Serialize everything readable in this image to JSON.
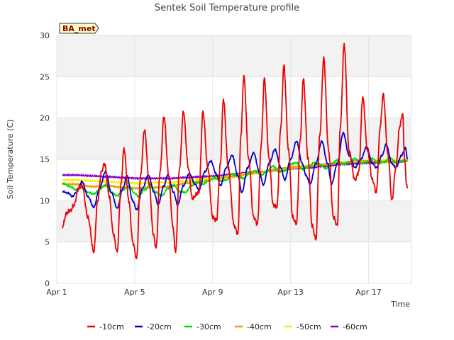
{
  "chart_data": {
    "type": "line",
    "title": "Sentek Soil Temperature profile",
    "xlabel": "Time",
    "ylabel": "Soil Temperature (C)",
    "site_tag": "BA_met",
    "xlim": [
      0,
      18.2
    ],
    "ylim": [
      0,
      30
    ],
    "yticks": [
      0,
      5,
      10,
      15,
      20,
      25,
      30
    ],
    "xticks": [
      {
        "pos": 0,
        "label": "Apr 1"
      },
      {
        "pos": 4,
        "label": "Apr 5"
      },
      {
        "pos": 8,
        "label": "Apr 9"
      },
      {
        "pos": 12,
        "label": "Apr 13"
      },
      {
        "pos": 16,
        "label": "Apr 17"
      }
    ],
    "grid": true,
    "legend_position": "bottom",
    "series": [
      {
        "name": "-10cm",
        "color": "#ee0000",
        "kind": "diurnal",
        "points": [
          [
            0.3,
            6.9
          ],
          [
            0.5,
            8.5
          ],
          [
            0.7,
            8.8
          ],
          [
            0.9,
            9.5
          ],
          [
            1.1,
            11.5
          ],
          [
            1.3,
            11.8
          ],
          [
            1.6,
            8.0
          ],
          [
            1.9,
            3.8
          ],
          [
            2.1,
            10.0
          ],
          [
            2.3,
            13.5
          ],
          [
            2.45,
            14.5
          ],
          [
            2.7,
            10.5
          ],
          [
            2.9,
            6.0
          ],
          [
            3.1,
            3.8
          ],
          [
            3.3,
            12.0
          ],
          [
            3.45,
            16.3
          ],
          [
            3.7,
            10.0
          ],
          [
            3.9,
            5.0
          ],
          [
            4.1,
            3.0
          ],
          [
            4.3,
            13.0
          ],
          [
            4.5,
            18.6
          ],
          [
            4.75,
            12.0
          ],
          [
            4.95,
            6.0
          ],
          [
            5.1,
            4.3
          ],
          [
            5.3,
            13.5
          ],
          [
            5.5,
            20.2
          ],
          [
            5.75,
            13.0
          ],
          [
            5.95,
            7.0
          ],
          [
            6.1,
            3.8
          ],
          [
            6.3,
            14.0
          ],
          [
            6.5,
            20.8
          ],
          [
            6.75,
            14.0
          ],
          [
            6.95,
            10.3
          ],
          [
            7.3,
            11.0
          ],
          [
            7.5,
            20.8
          ],
          [
            7.75,
            14.0
          ],
          [
            8.0,
            8.0
          ],
          [
            8.2,
            7.6
          ],
          [
            8.4,
            14.5
          ],
          [
            8.55,
            22.3
          ],
          [
            8.8,
            14.0
          ],
          [
            9.1,
            7.0
          ],
          [
            9.3,
            6.0
          ],
          [
            9.45,
            18.0
          ],
          [
            9.6,
            25.1
          ],
          [
            9.85,
            15.0
          ],
          [
            10.1,
            8.0
          ],
          [
            10.3,
            7.2
          ],
          [
            10.5,
            17.0
          ],
          [
            10.65,
            24.8
          ],
          [
            10.9,
            15.0
          ],
          [
            11.1,
            9.5
          ],
          [
            11.3,
            9.2
          ],
          [
            11.5,
            19.0
          ],
          [
            11.65,
            26.4
          ],
          [
            11.9,
            16.0
          ],
          [
            12.1,
            8.0
          ],
          [
            12.3,
            7.2
          ],
          [
            12.5,
            17.5
          ],
          [
            12.65,
            24.8
          ],
          [
            12.9,
            15.0
          ],
          [
            13.1,
            7.0
          ],
          [
            13.3,
            5.3
          ],
          [
            13.5,
            18.0
          ],
          [
            13.7,
            27.2
          ],
          [
            13.95,
            16.0
          ],
          [
            14.2,
            8.0
          ],
          [
            14.4,
            7.0
          ],
          [
            14.55,
            19.0
          ],
          [
            14.75,
            28.9
          ],
          [
            15.0,
            16.0
          ],
          [
            15.3,
            12.5
          ],
          [
            15.5,
            13.5
          ],
          [
            15.7,
            22.5
          ],
          [
            15.95,
            16.0
          ],
          [
            16.2,
            12.5
          ],
          [
            16.4,
            11.0
          ],
          [
            16.6,
            19.0
          ],
          [
            16.75,
            22.9
          ],
          [
            17.0,
            15.5
          ],
          [
            17.2,
            10.0
          ],
          [
            17.4,
            14.0
          ],
          [
            17.6,
            19.0
          ],
          [
            17.75,
            20.6
          ],
          [
            17.85,
            15.0
          ],
          [
            17.95,
            12.0
          ],
          [
            18.0,
            11.5
          ]
        ]
      },
      {
        "name": "-20cm",
        "color": "#0000cc",
        "kind": "smooth",
        "points": [
          [
            0.3,
            11.1
          ],
          [
            0.6,
            10.9
          ],
          [
            0.8,
            10.5
          ],
          [
            1.0,
            11.0
          ],
          [
            1.3,
            12.3
          ],
          [
            1.6,
            10.5
          ],
          [
            1.9,
            9.2
          ],
          [
            2.2,
            11.5
          ],
          [
            2.5,
            13.5
          ],
          [
            2.8,
            11.0
          ],
          [
            3.1,
            9.1
          ],
          [
            3.4,
            11.5
          ],
          [
            3.6,
            13.0
          ],
          [
            3.9,
            10.0
          ],
          [
            4.1,
            8.9
          ],
          [
            4.4,
            11.5
          ],
          [
            4.7,
            13.1
          ],
          [
            5.0,
            11.0
          ],
          [
            5.2,
            9.5
          ],
          [
            5.5,
            11.8
          ],
          [
            5.7,
            13.1
          ],
          [
            6.0,
            11.0
          ],
          [
            6.2,
            9.5
          ],
          [
            6.5,
            11.8
          ],
          [
            6.8,
            13.3
          ],
          [
            7.1,
            12.0
          ],
          [
            7.3,
            11.3
          ],
          [
            7.6,
            13.5
          ],
          [
            7.9,
            14.8
          ],
          [
            8.2,
            13.2
          ],
          [
            8.4,
            11.8
          ],
          [
            8.7,
            14.0
          ],
          [
            9.0,
            15.5
          ],
          [
            9.3,
            13.0
          ],
          [
            9.5,
            11.0
          ],
          [
            9.8,
            14.0
          ],
          [
            10.1,
            15.8
          ],
          [
            10.4,
            13.5
          ],
          [
            10.6,
            11.9
          ],
          [
            10.9,
            14.5
          ],
          [
            11.2,
            16.2
          ],
          [
            11.5,
            14.0
          ],
          [
            11.7,
            12.5
          ],
          [
            12.0,
            15.0
          ],
          [
            12.3,
            17.2
          ],
          [
            12.6,
            14.5
          ],
          [
            12.8,
            13.0
          ],
          [
            13.0,
            12.0
          ],
          [
            13.3,
            14.5
          ],
          [
            13.6,
            17.2
          ],
          [
            13.9,
            14.5
          ],
          [
            14.1,
            12.0
          ],
          [
            14.4,
            14.5
          ],
          [
            14.7,
            18.2
          ],
          [
            15.0,
            15.5
          ],
          [
            15.3,
            14.0
          ],
          [
            15.6,
            15.0
          ],
          [
            15.9,
            16.5
          ],
          [
            16.2,
            14.5
          ],
          [
            16.4,
            14.0
          ],
          [
            16.7,
            15.5
          ],
          [
            16.9,
            16.8
          ],
          [
            17.2,
            14.5
          ],
          [
            17.4,
            14.0
          ],
          [
            17.7,
            15.5
          ],
          [
            17.9,
            16.4
          ],
          [
            18.0,
            15.0
          ]
        ]
      },
      {
        "name": "-30cm",
        "color": "#00dd00",
        "kind": "smooth",
        "points": [
          [
            0.3,
            12.1
          ],
          [
            0.7,
            11.7
          ],
          [
            1.0,
            11.3
          ],
          [
            1.3,
            11.6
          ],
          [
            1.6,
            11.0
          ],
          [
            1.9,
            10.8
          ],
          [
            2.2,
            11.4
          ],
          [
            2.5,
            11.9
          ],
          [
            2.8,
            11.0
          ],
          [
            3.1,
            10.6
          ],
          [
            3.4,
            11.3
          ],
          [
            3.7,
            11.8
          ],
          [
            4.0,
            10.9
          ],
          [
            4.2,
            10.5
          ],
          [
            4.5,
            11.3
          ],
          [
            4.8,
            11.9
          ],
          [
            5.1,
            11.0
          ],
          [
            5.4,
            10.6
          ],
          [
            5.7,
            11.5
          ],
          [
            6.0,
            11.9
          ],
          [
            6.3,
            11.1
          ],
          [
            6.6,
            11.0
          ],
          [
            6.9,
            11.8
          ],
          [
            7.2,
            12.2
          ],
          [
            7.5,
            12.0
          ],
          [
            7.8,
            12.4
          ],
          [
            8.1,
            12.8
          ],
          [
            8.4,
            12.4
          ],
          [
            8.7,
            12.5
          ],
          [
            9.0,
            13.2
          ],
          [
            9.3,
            13.0
          ],
          [
            9.6,
            12.7
          ],
          [
            9.9,
            13.4
          ],
          [
            10.2,
            13.6
          ],
          [
            10.5,
            13.1
          ],
          [
            10.8,
            13.6
          ],
          [
            11.1,
            14.2
          ],
          [
            11.4,
            13.5
          ],
          [
            11.7,
            13.6
          ],
          [
            12.0,
            14.4
          ],
          [
            12.3,
            14.6
          ],
          [
            12.6,
            13.8
          ],
          [
            12.9,
            14.0
          ],
          [
            13.2,
            14.6
          ],
          [
            13.5,
            14.4
          ],
          [
            13.8,
            13.9
          ],
          [
            14.1,
            14.5
          ],
          [
            14.4,
            14.9
          ],
          [
            14.7,
            14.4
          ],
          [
            15.0,
            14.7
          ],
          [
            15.3,
            15.1
          ],
          [
            15.6,
            14.5
          ],
          [
            15.9,
            14.7
          ],
          [
            16.2,
            15.1
          ],
          [
            16.5,
            14.5
          ],
          [
            16.8,
            14.7
          ],
          [
            17.1,
            15.2
          ],
          [
            17.4,
            14.6
          ],
          [
            17.7,
            14.8
          ],
          [
            18.0,
            14.9
          ]
        ]
      },
      {
        "name": "-40cm",
        "color": "#e8a000",
        "kind": "smooth",
        "points": [
          [
            0.3,
            12.0
          ],
          [
            1.0,
            12.0
          ],
          [
            1.8,
            11.7
          ],
          [
            2.6,
            11.8
          ],
          [
            3.4,
            11.6
          ],
          [
            4.2,
            11.5
          ],
          [
            5.0,
            11.6
          ],
          [
            5.8,
            11.7
          ],
          [
            6.6,
            12.1
          ],
          [
            7.4,
            12.3
          ],
          [
            8.2,
            12.7
          ],
          [
            9.0,
            12.9
          ],
          [
            9.8,
            13.2
          ],
          [
            10.6,
            13.5
          ],
          [
            11.4,
            13.9
          ],
          [
            12.2,
            14.1
          ],
          [
            13.0,
            14.2
          ],
          [
            13.8,
            14.4
          ],
          [
            14.6,
            14.6
          ],
          [
            15.4,
            14.8
          ],
          [
            16.2,
            14.8
          ],
          [
            17.0,
            14.7
          ],
          [
            17.6,
            14.8
          ],
          [
            18.0,
            14.8
          ]
        ]
      },
      {
        "name": "-50cm",
        "color": "#ffee00",
        "kind": "smooth",
        "points": [
          [
            0.3,
            12.5
          ],
          [
            1.0,
            12.5
          ],
          [
            1.8,
            12.4
          ],
          [
            2.6,
            12.3
          ],
          [
            3.4,
            12.2
          ],
          [
            4.2,
            12.1
          ],
          [
            5.0,
            12.2
          ],
          [
            5.8,
            12.2
          ],
          [
            6.6,
            12.4
          ],
          [
            7.4,
            12.6
          ],
          [
            8.2,
            12.8
          ],
          [
            9.0,
            13.0
          ],
          [
            9.8,
            13.3
          ],
          [
            10.6,
            13.5
          ],
          [
            11.4,
            13.8
          ],
          [
            12.2,
            14.0
          ],
          [
            13.0,
            14.2
          ],
          [
            13.8,
            14.4
          ],
          [
            14.6,
            14.6
          ],
          [
            15.4,
            14.8
          ],
          [
            16.2,
            14.8
          ],
          [
            17.0,
            14.9
          ],
          [
            17.6,
            14.9
          ],
          [
            18.0,
            14.9
          ]
        ]
      },
      {
        "name": "-60cm",
        "color": "#8800cc",
        "kind": "smooth",
        "points": [
          [
            0.3,
            13.1
          ],
          [
            1.0,
            13.1
          ],
          [
            1.8,
            13.0
          ],
          [
            2.6,
            12.9
          ],
          [
            3.4,
            12.8
          ],
          [
            4.2,
            12.7
          ],
          [
            5.0,
            12.7
          ],
          [
            5.8,
            12.7
          ],
          [
            6.6,
            12.8
          ],
          [
            7.4,
            12.9
          ],
          [
            8.2,
            13.0
          ],
          [
            9.0,
            13.2
          ],
          [
            9.8,
            13.4
          ],
          [
            10.6,
            13.5
          ],
          [
            11.4,
            13.7
          ],
          [
            12.2,
            13.9
          ],
          [
            13.0,
            14.0
          ],
          [
            13.8,
            14.2
          ],
          [
            14.6,
            14.4
          ],
          [
            15.4,
            14.5
          ],
          [
            16.2,
            14.6
          ],
          [
            17.0,
            14.7
          ],
          [
            17.6,
            14.7
          ],
          [
            18.0,
            14.8
          ]
        ]
      }
    ]
  }
}
